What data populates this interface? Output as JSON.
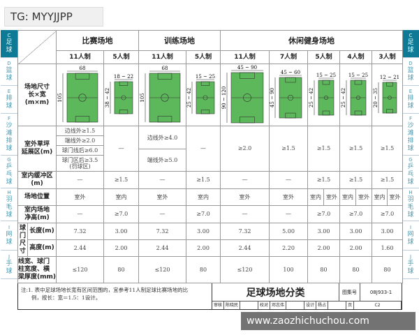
{
  "badge": "TG: MYYJJPP",
  "watermark": "www.zaozhichuchou.com",
  "left_tabs": [
    {
      "code": "C",
      "label": "足球",
      "active": true
    },
    {
      "code": "D",
      "label": "篮球"
    },
    {
      "code": "E",
      "label": "排球"
    },
    {
      "code": "F",
      "label": "沙滩排球"
    },
    {
      "code": "G",
      "label": "乒乓球"
    },
    {
      "code": "H",
      "label": "羽毛球"
    },
    {
      "code": "I",
      "label": "网球"
    },
    {
      "code": "J",
      "label": "手球"
    }
  ],
  "right_tabs": [
    {
      "code": "C",
      "label": "足球",
      "active": true
    },
    {
      "code": "D",
      "label": "篮球"
    },
    {
      "code": "E",
      "label": "排球"
    },
    {
      "code": "F",
      "label": "沙滩排球"
    },
    {
      "code": "G",
      "label": "乒乓球"
    },
    {
      "code": "H",
      "label": "羽毛球"
    },
    {
      "code": "I",
      "label": "网球"
    },
    {
      "code": "J",
      "label": "手球"
    }
  ],
  "groups": {
    "match": "比赛场地",
    "training": "训练场地",
    "leisure": "休闲健身场地"
  },
  "formats": [
    "11人制",
    "5人制",
    "11人制",
    "5人制",
    "11人制",
    "7人制",
    "5人制",
    "4人制",
    "3人制"
  ],
  "row_labels": {
    "size": "场地尺寸\n长×宽\n(m×m)",
    "outdoor": "室外草坪\n延展区(m)",
    "buffer": "室内缓冲区\n(m)",
    "location": "场地位置",
    "height": "室内场地\n净高(m)",
    "goal": "球门尺寸",
    "goal_length": "长度(m)",
    "goal_height": "高度(m)",
    "line": "线宽、球门\n柱宽度、横\n梁厚度(mm)"
  },
  "field_color": "#5cb85a",
  "fields": [
    {
      "w": "68",
      "l": "105"
    },
    {
      "w": "18 ~ 22",
      "l": "38 ~ 42"
    },
    {
      "w": "68",
      "l": "105"
    },
    {
      "w": "15 ~ 25",
      "l": "25 ~ 42"
    },
    {
      "w": "45 ~ 90",
      "l": "90 ~ 120"
    },
    {
      "w": "45 ~ 60",
      "l": "45 ~ 90"
    },
    {
      "w": "15 ~ 25",
      "l": "25 ~ 42"
    },
    {
      "w": "15 ~ 25",
      "l": "25 ~ 42"
    },
    {
      "w": "12 ~ 21",
      "l": "20 ~ 35"
    }
  ],
  "outdoor": {
    "match11": [
      "边线外≥1.5",
      "端线外≥2.0",
      "球门线后≥6.0",
      "球门区后≥3.5\n(罚球区)"
    ],
    "match5": "—",
    "training11": [
      "边线外≥4.0",
      "端线外≥5.0"
    ],
    "training5": "—",
    "leisure": [
      "≥2.0",
      "≥1.5",
      "≥1.5",
      "≥1.5",
      "≥1.5"
    ]
  },
  "buffer": [
    "—",
    "≥1.5",
    "—",
    "≥1.5",
    "—",
    "—",
    "≥1.5",
    "≥1.5",
    "≥1.5"
  ],
  "location": [
    "室外",
    "室内",
    "室外",
    "室内",
    "室外",
    "室外",
    [
      "室内",
      "室外"
    ],
    [
      "室内",
      "室外"
    ],
    [
      "室内",
      "室外"
    ]
  ],
  "height": [
    "—",
    "≥7.0",
    "—",
    "≥7.0",
    "—",
    "—",
    "≥7.0",
    "≥7.0",
    "≥7.0"
  ],
  "goal_length": [
    "7.32",
    "3.00",
    "7.32",
    "3.00",
    "7.32",
    "5.00",
    "3.00",
    "3.00",
    "3.00"
  ],
  "goal_height": [
    "2.44",
    "2.00",
    "2.44",
    "2.00",
    "2.44",
    "2.20",
    "2.00",
    "2.00",
    "1.60"
  ],
  "line": [
    "≤120",
    "80",
    "≤120",
    "80",
    "≤120",
    "100",
    "80",
    "80",
    "80"
  ],
  "note": "注:1. 表中足球场地长宽有区间范围的，宜参考11人制足球比赛场地的比\n　　例，按长：宽＝1.5：1设计。",
  "title": "足球场地分类",
  "atlas_label": "图集号",
  "atlas_no": "08J933-1",
  "page_label": "页",
  "page_no": "C2",
  "signoff": [
    "审核",
    "陈晓民",
    "校对",
    "邓志伟",
    "设计",
    "杨占"
  ]
}
